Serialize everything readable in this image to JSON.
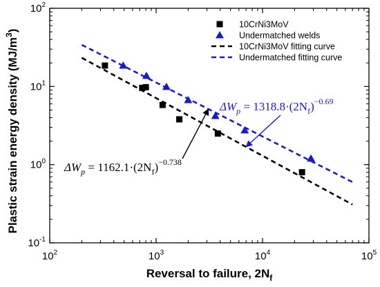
{
  "chart_data": {
    "type": "scatter",
    "x_scale": "log",
    "y_scale": "log",
    "xlim": [
      100,
      100000
    ],
    "ylim": [
      0.1,
      100
    ],
    "xlabel": "Reversal to failure, 2N",
    "xlabel_sub": "f",
    "ylabel": "Plastic strain energy density (MJ/m",
    "ylabel_sup": "3",
    "ylabel_end": ")",
    "x_ticks": [
      {
        "value": 100,
        "base": "10",
        "exp": "2"
      },
      {
        "value": 1000,
        "base": "10",
        "exp": "3"
      },
      {
        "value": 10000,
        "base": "10",
        "exp": "4"
      },
      {
        "value": 100000,
        "base": "10",
        "exp": "5"
      }
    ],
    "y_ticks": [
      {
        "value": 0.1,
        "base": "10",
        "exp": "-1"
      },
      {
        "value": 1,
        "base": "10",
        "exp": "0"
      },
      {
        "value": 10,
        "base": "10",
        "exp": "1"
      },
      {
        "value": 100,
        "base": "10",
        "exp": "2"
      }
    ],
    "legend_position": "top-right",
    "series": [
      {
        "name": "10CrNi3MoV",
        "marker": "square",
        "color": "#000000",
        "points": [
          [
            330,
            18.5
          ],
          [
            740,
            9.6
          ],
          [
            800,
            9.8
          ],
          [
            1150,
            5.8
          ],
          [
            1650,
            3.8
          ],
          [
            3800,
            2.5
          ],
          [
            23500,
            0.8
          ]
        ]
      },
      {
        "name": "Undermatched welds",
        "marker": "triangle",
        "color": "#1a1acc",
        "points": [
          [
            490,
            18.5
          ],
          [
            810,
            13.7
          ],
          [
            1250,
            9.9
          ],
          [
            2000,
            6.7
          ],
          [
            3600,
            4.2
          ],
          [
            6800,
            2.75
          ],
          [
            28500,
            1.2
          ]
        ]
      }
    ],
    "fits": [
      {
        "name": "10CrNi3MoV fitting curve",
        "color": "#000000",
        "dash": "dashed",
        "coef": 1162.1,
        "exp": -0.738,
        "x_range": [
          200,
          70000
        ]
      },
      {
        "name": "Undermatched  fitting curve",
        "color": "#1a1acc",
        "dash": "dashed",
        "coef": 1318.8,
        "exp": -0.69,
        "x_range": [
          200,
          70000
        ]
      }
    ],
    "annotations": [
      {
        "color": "#1a1acc",
        "lhs": "ΔW",
        "lhs_sub": "p",
        "rhs": " = 1318.8·(2N",
        "rhs_sub": "f",
        "rhs_end": ")",
        "exp": "−0.69",
        "points_to_x": 7000
      },
      {
        "color": "#000000",
        "lhs": "ΔW",
        "lhs_sub": "p",
        "rhs": " = 1162.1·(2N",
        "rhs_sub": "f",
        "rhs_end": ")",
        "exp": "−0.738",
        "points_to_x": 3100
      }
    ]
  }
}
